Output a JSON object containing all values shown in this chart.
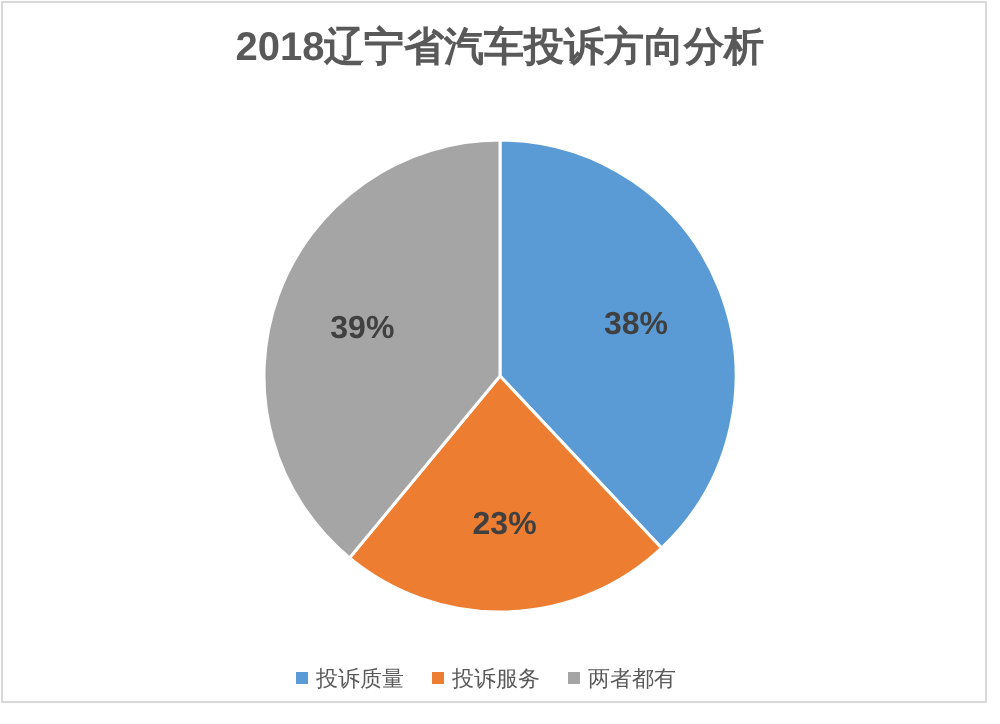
{
  "chart_data": {
    "type": "pie",
    "title": "2018辽宁省汽车投诉方向分析",
    "categories": [
      "投诉质量",
      "投诉服务",
      "两者都有"
    ],
    "values": [
      38,
      23,
      39
    ],
    "colors": [
      "#5b9bd5",
      "#ed7d31",
      "#a5a5a5"
    ],
    "value_labels": [
      "38%",
      "23%",
      "39%"
    ],
    "legend": "bottom"
  }
}
